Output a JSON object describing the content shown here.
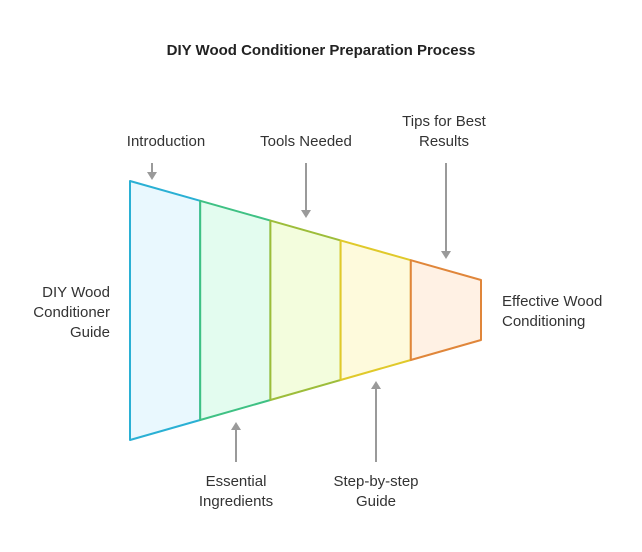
{
  "title": "DIY Wood Conditioner Preparation Process",
  "start_label": [
    "DIY Wood",
    "Conditioner",
    "Guide"
  ],
  "end_label": [
    "Effective Wood",
    "Conditioning"
  ],
  "stages": [
    {
      "label": [
        "Introduction"
      ],
      "position": "top",
      "fill": "#e9f8fe",
      "stroke": "#2ab0d4"
    },
    {
      "label": [
        "Essential",
        "Ingredients"
      ],
      "position": "bottom",
      "fill": "#e3fcef",
      "stroke": "#3fc184"
    },
    {
      "label": [
        "Tools Needed"
      ],
      "position": "top",
      "fill": "#f3fddd",
      "stroke": "#9dbd3a"
    },
    {
      "label": [
        "Step-by-step",
        "Guide"
      ],
      "position": "bottom",
      "fill": "#fefadc",
      "stroke": "#e0c92a"
    },
    {
      "label": [
        "Tips for Best",
        "Results"
      ],
      "position": "top",
      "fill": "#fff1e4",
      "stroke": "#e0863a"
    }
  ],
  "arrow_color": "#9a9a9a"
}
